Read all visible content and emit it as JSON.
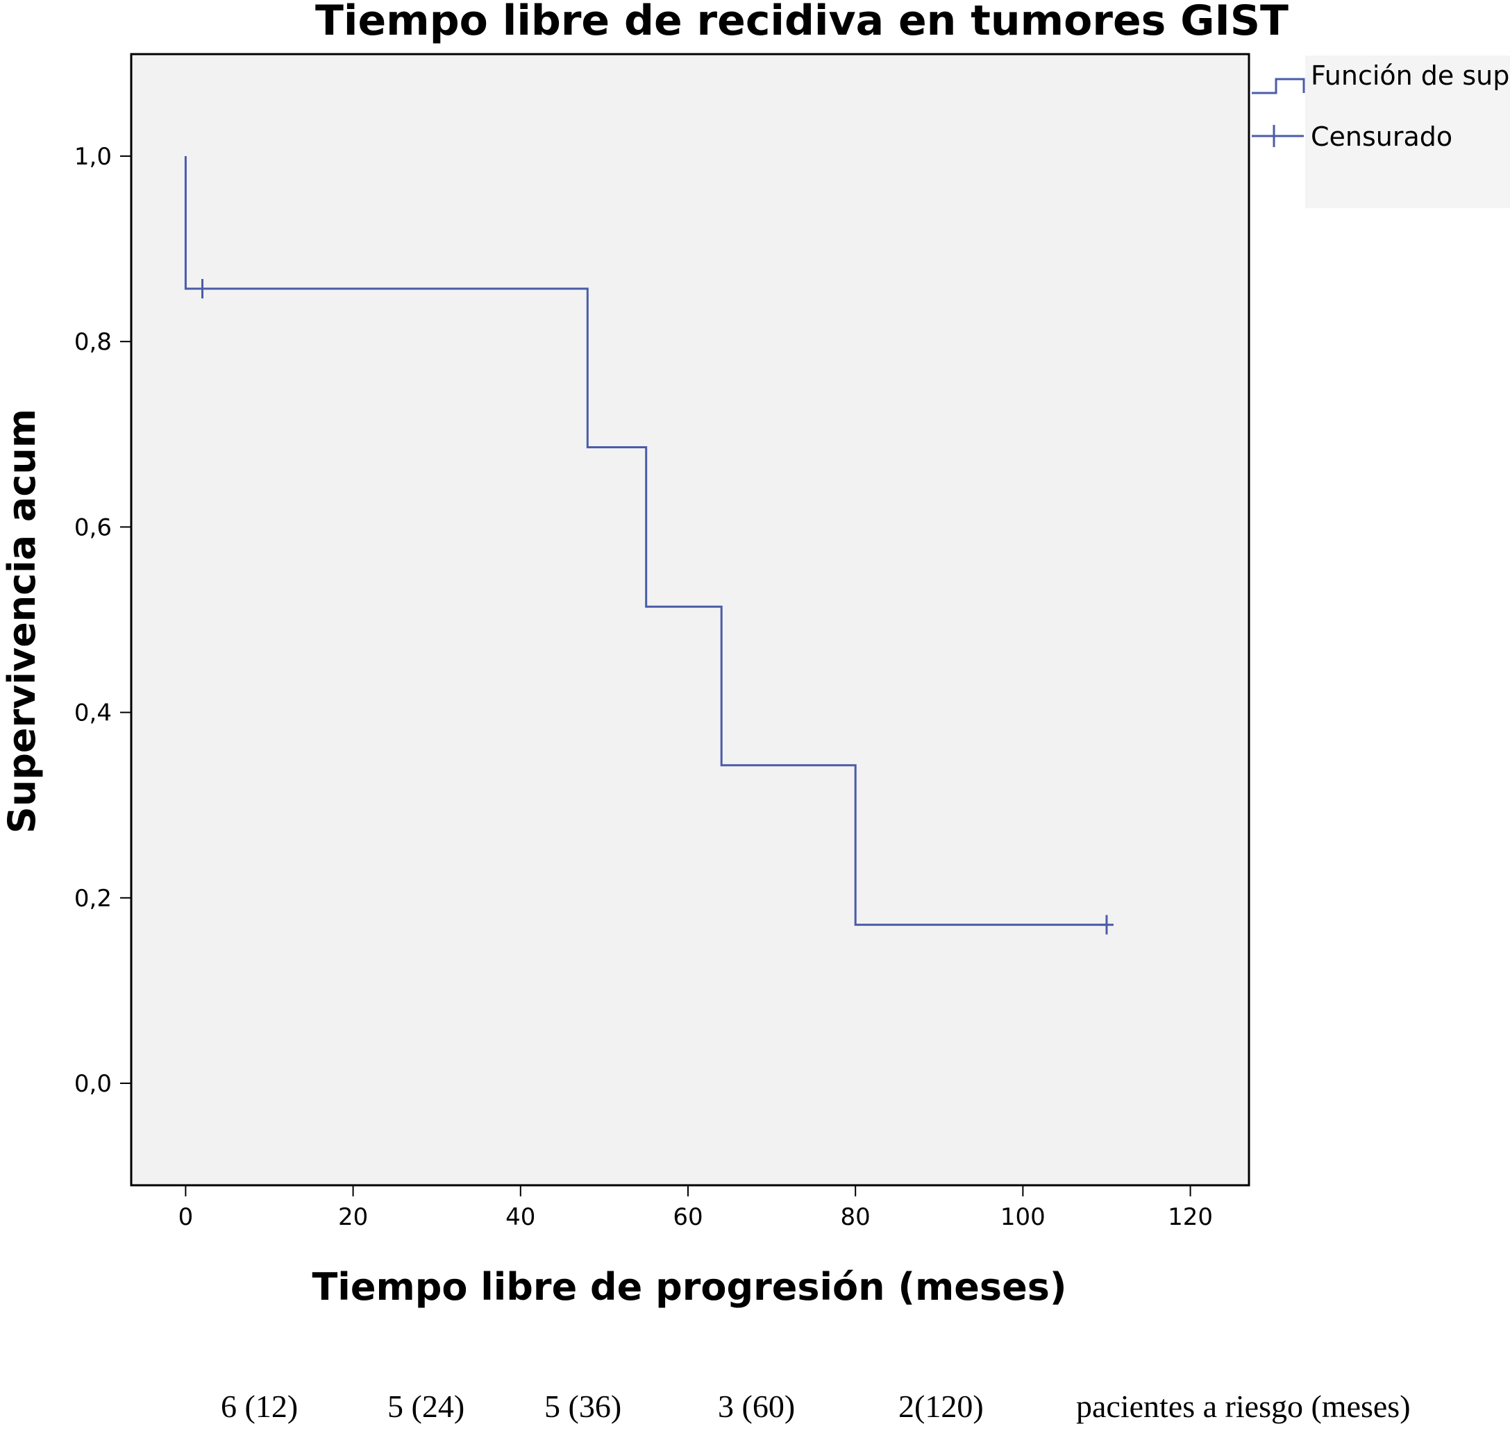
{
  "chart_data": {
    "type": "line",
    "title": "Tiempo libre de recidiva en tumores GIST",
    "xlabel": "Tiempo libre de progresión (meses)",
    "ylabel": "Supervivencia acum",
    "xlim": [
      -6.5,
      127
    ],
    "ylim": [
      -0.11,
      1.11
    ],
    "x_ticks": [
      0,
      20,
      40,
      60,
      80,
      100,
      120
    ],
    "x_tick_labels": [
      "0",
      "20",
      "40",
      "60",
      "80",
      "100",
      "120"
    ],
    "y_ticks": [
      0.0,
      0.2,
      0.4,
      0.6,
      0.8,
      1.0
    ],
    "y_tick_labels": [
      "0,0",
      "0,2",
      "0,4",
      "0,6",
      "0,8",
      "1,0"
    ],
    "grid": false,
    "legend_position": "top-right, outside plot",
    "legend": [
      {
        "label": "Función de supervivencia",
        "symbol": "step"
      },
      {
        "label": "Censurado",
        "symbol": "cross"
      }
    ],
    "series": [
      {
        "name": "Función de supervivencia",
        "color": "#4a5ca8",
        "step_points": [
          {
            "x": 0,
            "y": 1.0
          },
          {
            "x": 0,
            "y": 0.857
          },
          {
            "x": 48,
            "y": 0.857
          },
          {
            "x": 48,
            "y": 0.686
          },
          {
            "x": 55,
            "y": 0.686
          },
          {
            "x": 55,
            "y": 0.514
          },
          {
            "x": 64,
            "y": 0.514
          },
          {
            "x": 64,
            "y": 0.343
          },
          {
            "x": 80,
            "y": 0.343
          },
          {
            "x": 80,
            "y": 0.171
          },
          {
            "x": 110,
            "y": 0.171
          }
        ]
      },
      {
        "name": "Censurado",
        "color": "#4a5ca8",
        "censored_points": [
          {
            "x": 2,
            "y": 0.857
          },
          {
            "x": 110,
            "y": 0.171
          }
        ]
      }
    ],
    "plot_background": "#f2f2f2",
    "line_color": "#4a5ca8"
  },
  "risk_table": {
    "entries": [
      "6 (12)",
      "5 (24)",
      "5 (36)",
      "3 (60)",
      "2(120)"
    ],
    "label": "pacientes a riesgo (meses)"
  }
}
